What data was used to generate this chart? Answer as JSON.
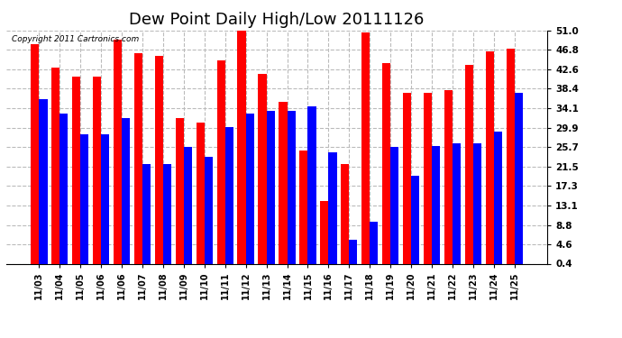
{
  "title": "Dew Point Daily High/Low 20111126",
  "copyright": "Copyright 2011 Cartronics.com",
  "dates": [
    "11/03",
    "11/04",
    "11/05",
    "11/06",
    "11/06",
    "11/07",
    "11/08",
    "11/09",
    "11/10",
    "11/11",
    "11/12",
    "11/13",
    "11/14",
    "11/15",
    "11/16",
    "11/17",
    "11/18",
    "11/19",
    "11/20",
    "11/21",
    "11/22",
    "11/23",
    "11/24",
    "11/25"
  ],
  "high": [
    48.0,
    43.0,
    41.0,
    41.0,
    49.0,
    46.0,
    45.5,
    32.0,
    31.0,
    44.5,
    51.5,
    41.5,
    35.5,
    25.0,
    14.0,
    22.0,
    50.5,
    44.0,
    37.5,
    37.5,
    38.0,
    43.5,
    46.5,
    47.0
  ],
  "low": [
    36.0,
    33.0,
    28.5,
    28.5,
    32.0,
    22.0,
    22.0,
    25.7,
    23.5,
    30.0,
    33.0,
    33.5,
    33.5,
    34.5,
    24.5,
    5.5,
    9.5,
    25.7,
    19.5,
    26.0,
    26.5,
    26.5,
    29.0,
    37.5
  ],
  "yticks": [
    0.4,
    4.6,
    8.8,
    13.1,
    17.3,
    21.5,
    25.7,
    29.9,
    34.1,
    38.4,
    42.6,
    46.8,
    51.0
  ],
  "ylim": [
    0.4,
    51.0
  ],
  "high_color": "#ff0000",
  "low_color": "#0000ff",
  "bg_color": "#ffffff",
  "grid_color": "#bbbbbb",
  "title_fontsize": 13
}
